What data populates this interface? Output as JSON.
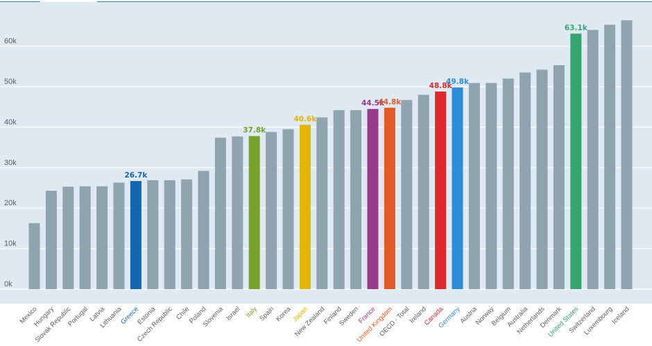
{
  "chart_data": {
    "type": "bar",
    "title": "",
    "xlabel": "",
    "ylabel": "",
    "ylim": [
      0,
      68000
    ],
    "yticks": [
      {
        "value": 0,
        "label": "0k"
      },
      {
        "value": 10000,
        "label": "10k"
      },
      {
        "value": 20000,
        "label": "20k"
      },
      {
        "value": 30000,
        "label": "30k"
      },
      {
        "value": 40000,
        "label": "40k"
      },
      {
        "value": 50000,
        "label": "50k"
      },
      {
        "value": 60000,
        "label": "60k"
      }
    ],
    "grid": true,
    "categories": [
      "Mexico",
      "Hungary",
      "Slovak Republic",
      "Portugal",
      "Latvia",
      "Lithuania",
      "Greece",
      "Estonia",
      "Czech Republic",
      "Chile",
      "Poland",
      "Slovenia",
      "Israel",
      "Italy",
      "Spain",
      "Korea",
      "Japan",
      "New Zealand",
      "Finland",
      "Sweden",
      "France",
      "United Kingdom",
      "OECD - Total",
      "Ireland",
      "Canada",
      "Germany",
      "Austria",
      "Norway",
      "Belgium",
      "Australia",
      "Netherlands",
      "Denmark",
      "United States",
      "Switzerland",
      "Luxembourg",
      "Iceland"
    ],
    "values": [
      16300,
      24300,
      25300,
      25400,
      25400,
      26300,
      26700,
      26900,
      26900,
      27100,
      29200,
      37400,
      37700,
      37800,
      38800,
      39500,
      40600,
      42400,
      44200,
      44200,
      44500,
      44800,
      46700,
      48000,
      48800,
      49800,
      50900,
      50900,
      52000,
      53500,
      54200,
      55300,
      63100,
      64000,
      65300,
      66400
    ],
    "highlights": [
      {
        "category": "Greece",
        "label": "26.7k",
        "color": "#1566b0"
      },
      {
        "category": "Italy",
        "label": "37.8k",
        "color": "#76a22a"
      },
      {
        "category": "Japan",
        "label": "40.6k",
        "color": "#e3b505"
      },
      {
        "category": "France",
        "label": "44.5k",
        "color": "#9a3a8c"
      },
      {
        "category": "United Kingdom",
        "label": "44.8k",
        "color": "#e25a24"
      },
      {
        "category": "Canada",
        "label": "48.8k",
        "color": "#e2262e"
      },
      {
        "category": "Germany",
        "label": "49.8k",
        "color": "#2a8fd8"
      },
      {
        "category": "United States",
        "label": "63.1k",
        "color": "#35a56e"
      }
    ],
    "colors": {
      "default_bar": "#90a4b0",
      "plot_background": "#dfe9f1",
      "grid": "#ffffff",
      "default_label": "#555d66"
    }
  }
}
